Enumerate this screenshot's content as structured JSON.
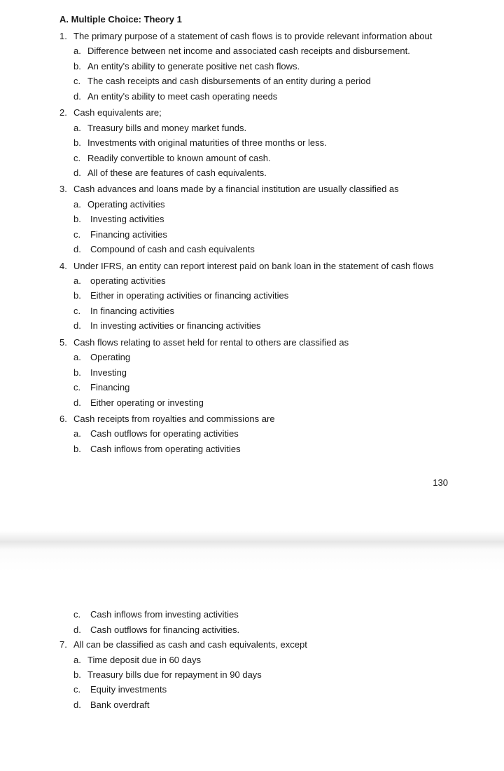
{
  "section_title": "A. Multiple Choice: Theory 1",
  "page_number": "130",
  "questions": [
    {
      "num": "1.",
      "text": "The primary purpose of a statement of cash flows is to provide relevant information about",
      "opts": [
        {
          "l": "a.",
          "t": "Difference between net income and associated cash receipts and disbursement."
        },
        {
          "l": "b.",
          "t": "An entity's ability to generate positive net cash flows."
        },
        {
          "l": "c.",
          "t": "The cash receipts and cash disbursements of an entity during a period"
        },
        {
          "l": "d.",
          "t": "An entity's ability to meet cash operating needs"
        }
      ]
    },
    {
      "num": "2.",
      "text": "Cash equivalents are;",
      "opts": [
        {
          "l": "a.",
          "t": "Treasury bills and money market funds."
        },
        {
          "l": "b.",
          "t": "Investments with original maturities of three months or less."
        },
        {
          "l": "c.",
          "t": "Readily convertible to known amount of cash."
        },
        {
          "l": "d.",
          "t": "All of these are features of cash equivalents."
        }
      ]
    },
    {
      "num": "3.",
      "text": "Cash advances and loans made by a financial institution are usually classified as",
      "opts": [
        {
          "l": "a.",
          "t": "Operating activities"
        },
        {
          "l": "b.",
          "t": "Investing activities",
          "pad": true
        },
        {
          "l": "c.",
          "t": "Financing activities",
          "pad": true
        },
        {
          "l": "d.",
          "t": "Compound of cash and cash equivalents",
          "pad": true
        }
      ]
    },
    {
      "num": "4.",
      "text": "Under IFRS, an entity can report interest paid on bank loan in the statement of cash flows",
      "opts": [
        {
          "l": "a.",
          "t": "operating activities",
          "pad": true
        },
        {
          "l": "b.",
          "t": "Either in operating activities or financing activities",
          "pad": true
        },
        {
          "l": "c.",
          "t": "In financing activities",
          "pad": true
        },
        {
          "l": "d.",
          "t": "In investing activities or financing activities",
          "pad": true
        }
      ]
    },
    {
      "num": "5.",
      "text": "Cash flows relating to asset held for rental to others are classified as",
      "opts": [
        {
          "l": "a.",
          "t": "Operating",
          "pad": true
        },
        {
          "l": "b.",
          "t": "Investing",
          "pad": true
        },
        {
          "l": "c.",
          "t": "Financing",
          "pad": true
        },
        {
          "l": "d.",
          "t": "Either operating or investing",
          "pad": true
        }
      ]
    },
    {
      "num": "6.",
      "text": "Cash receipts from royalties and commissions are",
      "opts": [
        {
          "l": "a.",
          "t": "Cash outflows for operating activities",
          "pad": true
        },
        {
          "l": "b.",
          "t": "Cash inflows from operating activities",
          "pad": true
        }
      ]
    }
  ],
  "page2_opts": [
    {
      "l": "c.",
      "t": "Cash inflows from investing activities",
      "pad": true
    },
    {
      "l": "d.",
      "t": "Cash outflows for financing activities.",
      "pad": true
    }
  ],
  "page2_questions": [
    {
      "num": "7.",
      "text": "All can be classified as cash and cash equivalents, except",
      "opts": [
        {
          "l": "a.",
          "t": "Time deposit due in 60 days"
        },
        {
          "l": "b.",
          "t": "Treasury bills due for repayment in 90 days"
        },
        {
          "l": "c.",
          "t": "Equity investments",
          "pad": true
        },
        {
          "l": "d.",
          "t": "Bank overdraft",
          "pad": true
        }
      ]
    }
  ]
}
